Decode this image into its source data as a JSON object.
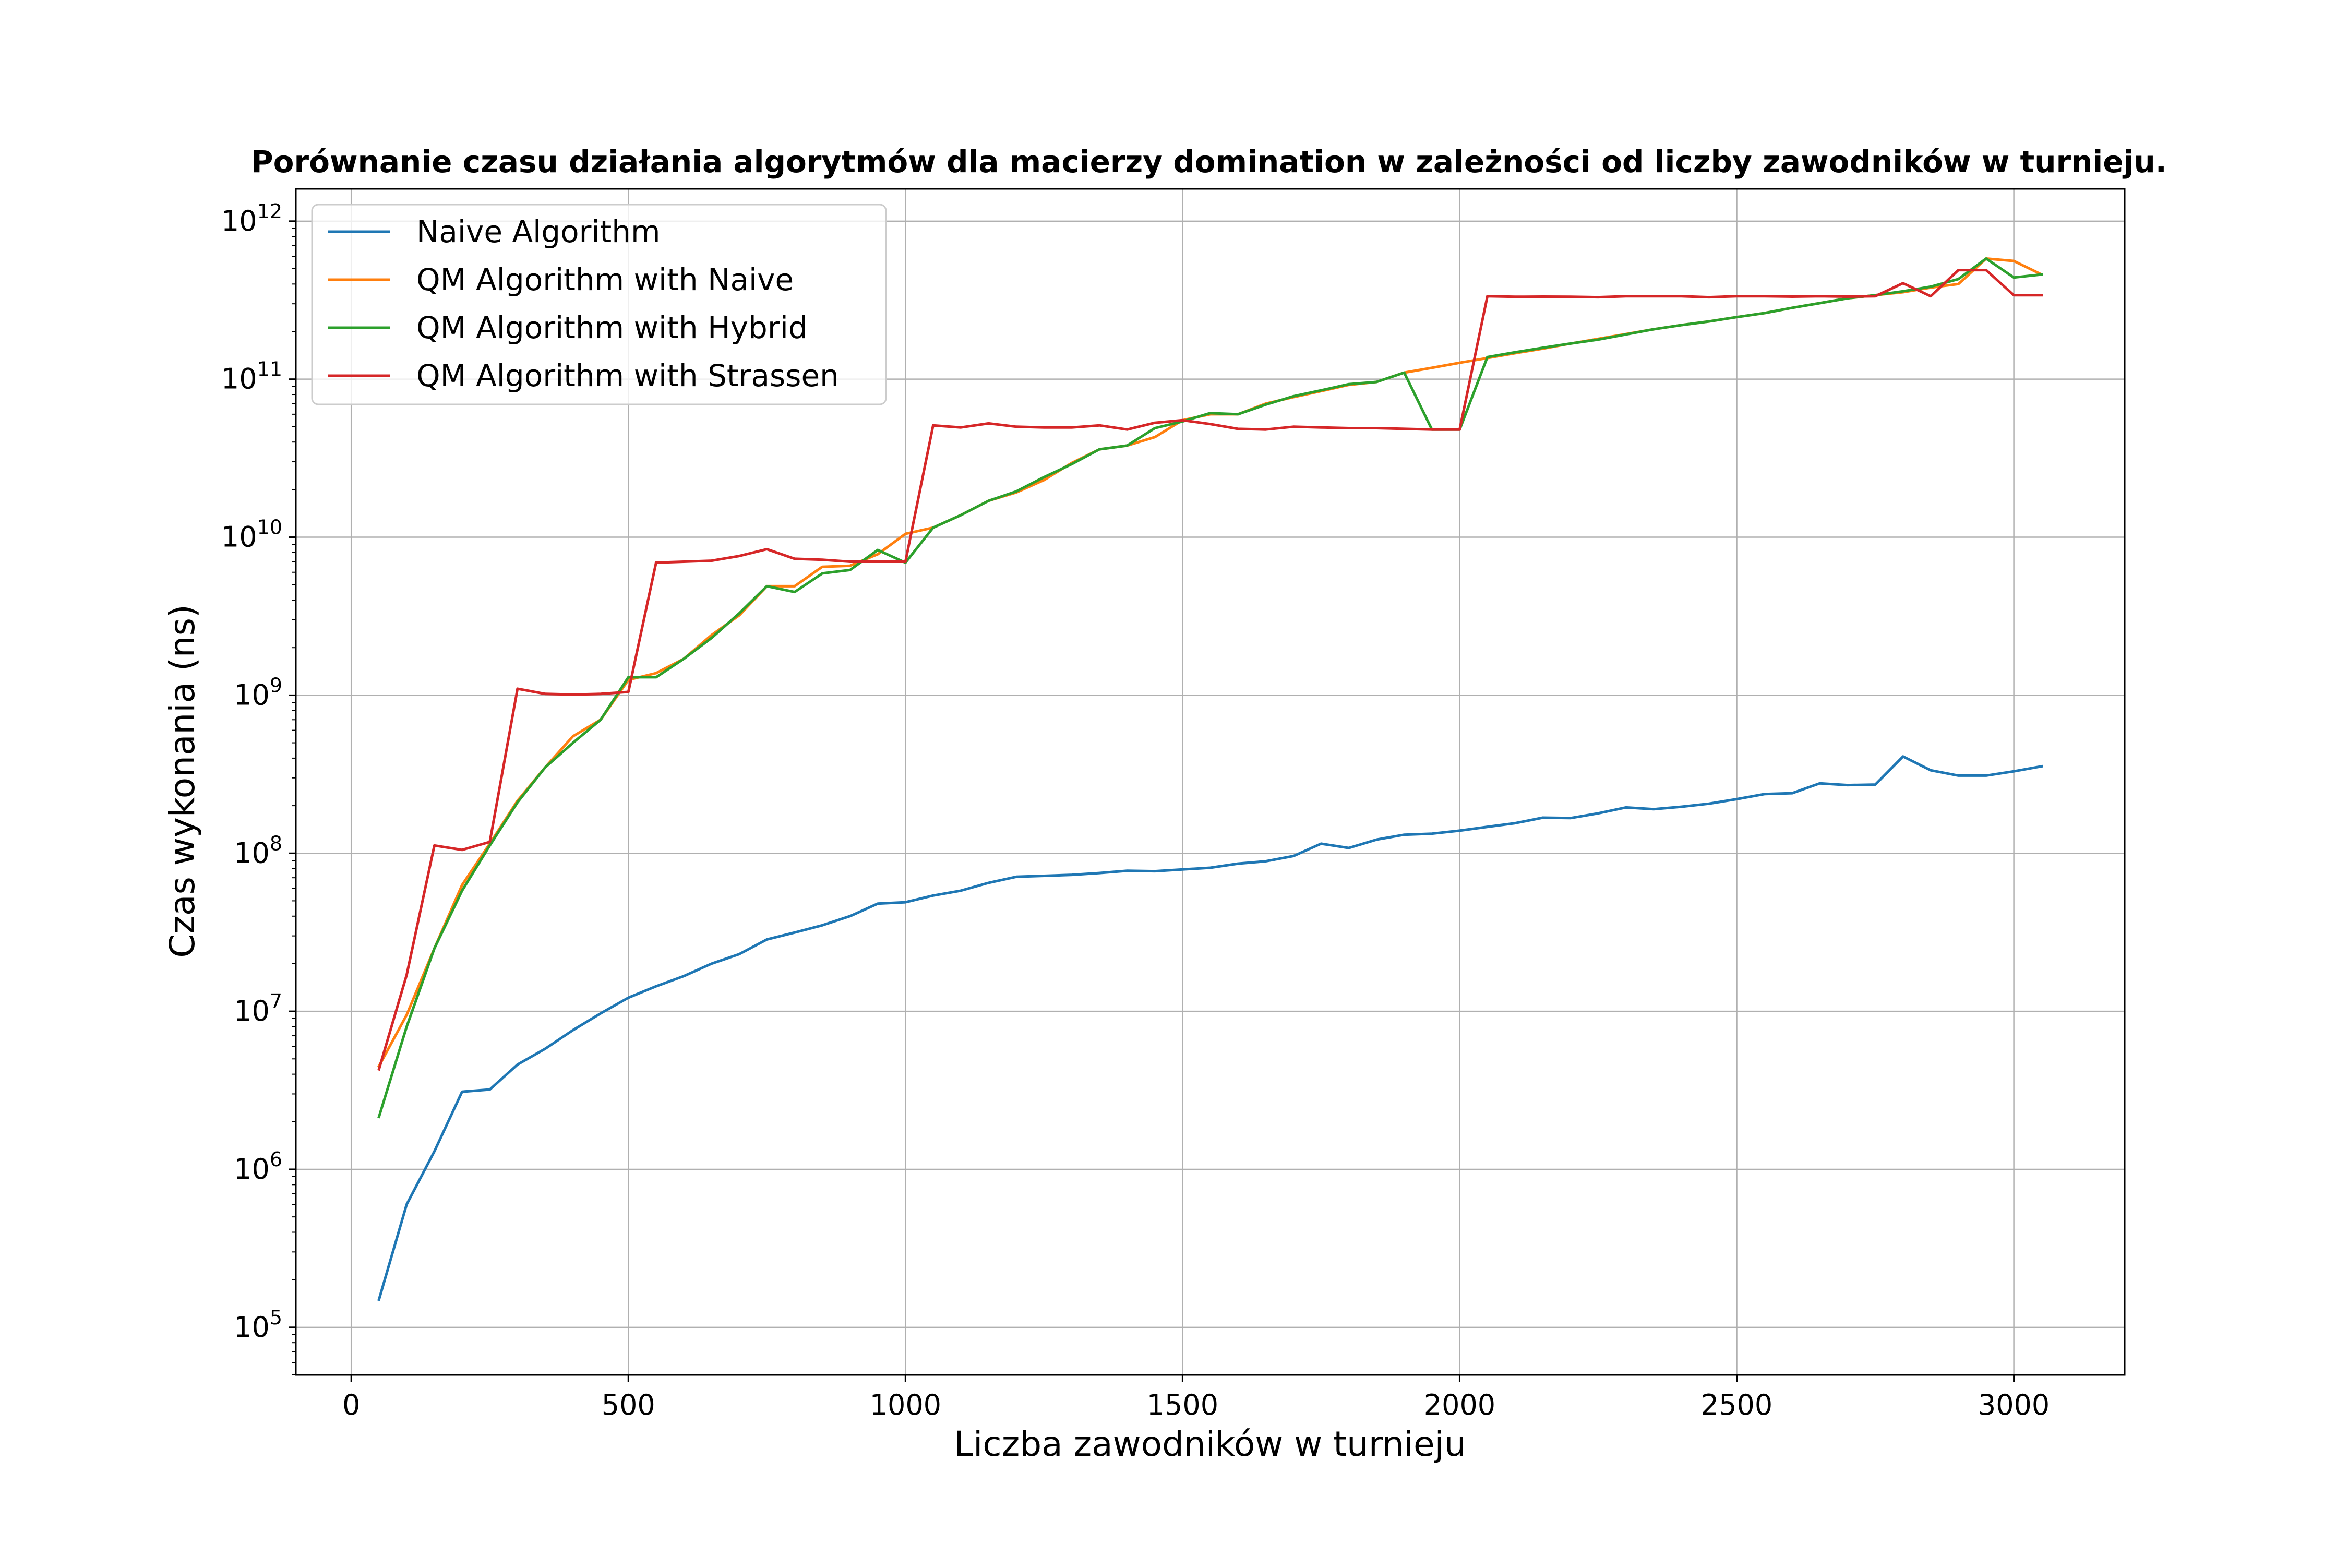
{
  "chart_data": {
    "type": "line",
    "title": "Porównanie czasu działania algorytmów dla macierzy domination w zależności od liczby zawodników w turnieju.",
    "xlabel": "Liczba zawodników w turnieju",
    "ylabel": "Czas wykonania (ns)",
    "x_scale": "linear",
    "y_scale": "log",
    "xlim": [
      -100,
      3200
    ],
    "ylim": [
      50000,
      1600000000000
    ],
    "x_ticks": [
      0,
      500,
      1000,
      1500,
      2000,
      2500,
      3000
    ],
    "x_tick_labels": [
      "0",
      "500",
      "1000",
      "1500",
      "2000",
      "2500",
      "3000"
    ],
    "y_ticks": [
      {
        "value": 100000,
        "base": "10",
        "exp": "5"
      },
      {
        "value": 1000000,
        "base": "10",
        "exp": "6"
      },
      {
        "value": 10000000,
        "base": "10",
        "exp": "7"
      },
      {
        "value": 100000000,
        "base": "10",
        "exp": "8"
      },
      {
        "value": 1000000000,
        "base": "10",
        "exp": "9"
      },
      {
        "value": 10000000000,
        "base": "10",
        "exp": "10"
      },
      {
        "value": 100000000000,
        "base": "10",
        "exp": "11"
      },
      {
        "value": 1000000000000,
        "base": "10",
        "exp": "12"
      }
    ],
    "grid": true,
    "legend_position": "upper-left",
    "x": [
      50,
      100,
      150,
      200,
      250,
      300,
      350,
      400,
      450,
      500,
      550,
      600,
      650,
      700,
      750,
      800,
      850,
      900,
      950,
      1000,
      1050,
      1100,
      1150,
      1200,
      1250,
      1300,
      1350,
      1400,
      1450,
      1500,
      1550,
      1600,
      1650,
      1700,
      1750,
      1800,
      1850,
      1900,
      1950,
      2000,
      2050,
      2100,
      2150,
      2200,
      2250,
      2300,
      2350,
      2400,
      2450,
      2500,
      2550,
      2600,
      2650,
      2700,
      2750,
      2800,
      2850,
      2900,
      2950,
      3000,
      3050
    ],
    "series": [
      {
        "name": "Naive Algorithm",
        "color": "#1f77b4",
        "values": [
          150000.0,
          600000.0,
          1300000.0,
          3100000.0,
          3200000.0,
          4600000.0,
          5800000.0,
          7600000.0,
          9700000.0,
          12200000.0,
          14400000.0,
          16700000.0,
          20000000.0,
          23000000.0,
          28500000.0,
          31500000.0,
          35000000.0,
          40000000.0,
          48000000.0,
          49000000.0,
          54000000.0,
          58000000.0,
          65000000.0,
          71000000.0,
          72000000.0,
          73000000.0,
          75000000.0,
          77500000.0,
          77000000.0,
          79000000.0,
          81000000.0,
          86000000.0,
          89000000.0,
          96000000.0,
          115000000.0,
          108000000.0,
          122000000.0,
          131000000.0,
          133000000.0,
          139000000.0,
          147000000.0,
          155000000.0,
          168000000.0,
          167000000.0,
          179000000.0,
          195000000.0,
          190000000.0,
          197000000.0,
          206000000.0,
          220000000.0,
          237000000.0,
          240000000.0,
          277000000.0,
          270000000.0,
          272000000.0,
          410000000.0,
          335000000.0,
          310000000.0,
          310000000.0,
          330000000.0,
          355000000.0
        ]
      },
      {
        "name": "QM Algorithm with Naive",
        "color": "#ff7f0e",
        "values": [
          4500000.0,
          9500000.0,
          25000000.0,
          63000000.0,
          115000000.0,
          215000000.0,
          350000000.0,
          550000000.0,
          700000000.0,
          1250000000.0,
          1380000000.0,
          1700000000.0,
          2400000000.0,
          3200000000.0,
          4900000000.0,
          4900000000.0,
          6500000000.0,
          6600000000.0,
          7800000000.0,
          10500000000.0,
          11500000000.0,
          13800000000.0,
          17000000000.0,
          19200000000.0,
          23000000000.0,
          29500000000.0,
          36000000000.0,
          38000000000.0,
          43000000000.0,
          55000000000.0,
          60000000000.0,
          60000000000.0,
          70000000000.0,
          77000000000.0,
          84000000000.0,
          92000000000.0,
          96000000000.0,
          110000000000.0,
          118000000000.0,
          127000000000.0,
          136000000000.0,
          146000000000.0,
          156000000000.0,
          168000000000.0,
          180000000000.0,
          193000000000.0,
          207000000000.0,
          220000000000.0,
          232000000000.0,
          247000000000.0,
          262000000000.0,
          283000000000.0,
          303000000000.0,
          325000000000.0,
          340000000000.0,
          355000000000.0,
          380000000000.0,
          400000000000.0,
          580000000000.0,
          560000000000.0,
          460000000000.0
        ]
      },
      {
        "name": "QM Algorithm with Hybrid",
        "color": "#2ca02c",
        "values": [
          2150000.0,
          8000000.0,
          25000000.0,
          58000000.0,
          112000000.0,
          210000000.0,
          350000000.0,
          500000000.0,
          700000000.0,
          1300000000.0,
          1300000000.0,
          1700000000.0,
          2300000000.0,
          3300000000.0,
          4900000000.0,
          4500000000.0,
          5900000000.0,
          6200000000.0,
          8300000000.0,
          6900000000.0,
          11500000000.0,
          13800000000.0,
          17000000000.0,
          19500000000.0,
          24000000000.0,
          29000000000.0,
          36000000000.0,
          38000000000.0,
          49000000000.0,
          54000000000.0,
          61000000000.0,
          60000000000.0,
          69000000000.0,
          78000000000.0,
          85000000000.0,
          93000000000.0,
          96000000000.0,
          110000000000.0,
          48000000000.0,
          48000000000.0,
          138000000000.0,
          148000000000.0,
          158000000000.0,
          168000000000.0,
          178000000000.0,
          192000000000.0,
          207000000000.0,
          220000000000.0,
          232000000000.0,
          247000000000.0,
          262000000000.0,
          283000000000.0,
          303000000000.0,
          325000000000.0,
          340000000000.0,
          360000000000.0,
          385000000000.0,
          430000000000.0,
          580000000000.0,
          440000000000.0,
          460000000000.0
        ]
      },
      {
        "name": "QM Algorithm with Strassen",
        "color": "#d62728",
        "values": [
          4300000.0,
          17000000.0,
          112000000.0,
          105000000.0,
          118000000.0,
          1100000000.0,
          1020000000.0,
          1010000000.0,
          1020000000.0,
          1050000000.0,
          6900000000.0,
          7000000000.0,
          7100000000.0,
          7600000000.0,
          8400000000.0,
          7300000000.0,
          7200000000.0,
          7000000000.0,
          7000000000.0,
          7000000000.0,
          51000000000.0,
          49500000000.0,
          52500000000.0,
          50000000000.0,
          49500000000.0,
          49500000000.0,
          51000000000.0,
          48000000000.0,
          53000000000.0,
          55000000000.0,
          52000000000.0,
          48500000000.0,
          48000000000.0,
          50000000000.0,
          49500000000.0,
          49000000000.0,
          49000000000.0,
          48500000000.0,
          48000000000.0,
          48000000000.0,
          335000000000.0,
          332000000000.0,
          333000000000.0,
          332000000000.0,
          330000000000.0,
          335000000000.0,
          335000000000.0,
          335000000000.0,
          330000000000.0,
          335000000000.0,
          335000000000.0,
          333000000000.0,
          335000000000.0,
          333000000000.0,
          335000000000.0,
          405000000000.0,
          335000000000.0,
          490000000000.0,
          490000000000.0,
          340000000000.0,
          340000000000.0
        ]
      }
    ]
  }
}
